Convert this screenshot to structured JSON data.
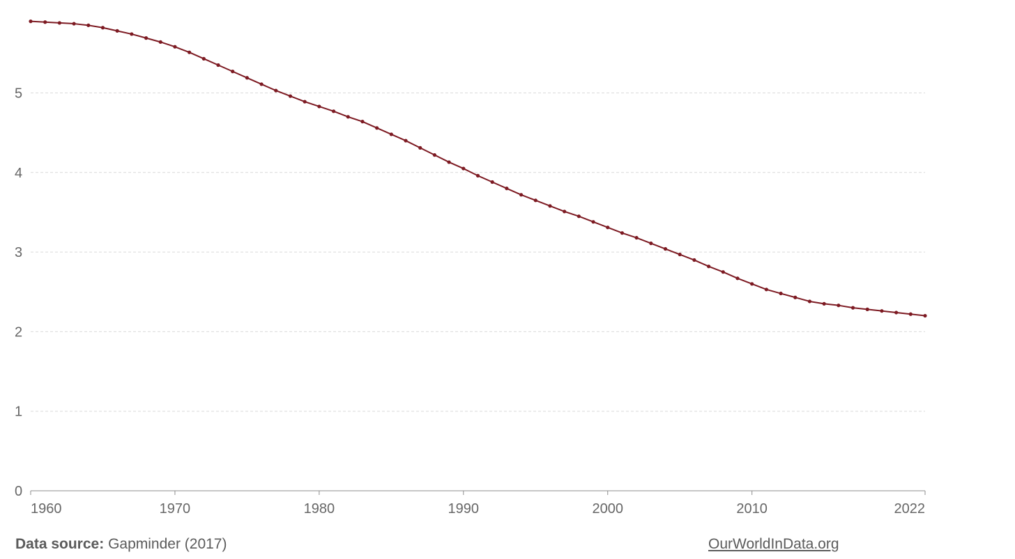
{
  "chart_data": {
    "type": "line",
    "title": "",
    "xlabel": "",
    "ylabel": "",
    "xlim": [
      1960,
      2022
    ],
    "ylim": [
      0,
      6
    ],
    "xticks": [
      1960,
      1970,
      1980,
      1990,
      2000,
      2010,
      2022
    ],
    "yticks": [
      0,
      1,
      2,
      3,
      4,
      5
    ],
    "grid": "horizontal dashed",
    "series": [
      {
        "color": "#7d1a22",
        "x": [
          1960,
          1961,
          1962,
          1963,
          1964,
          1965,
          1966,
          1967,
          1968,
          1969,
          1970,
          1971,
          1972,
          1973,
          1974,
          1975,
          1976,
          1977,
          1978,
          1979,
          1980,
          1981,
          1982,
          1983,
          1984,
          1985,
          1986,
          1987,
          1988,
          1989,
          1990,
          1991,
          1992,
          1993,
          1994,
          1995,
          1996,
          1997,
          1998,
          1999,
          2000,
          2001,
          2002,
          2003,
          2004,
          2005,
          2006,
          2007,
          2008,
          2009,
          2010,
          2011,
          2012,
          2013,
          2014,
          2015,
          2016,
          2017,
          2018,
          2019,
          2020,
          2021,
          2022
        ],
        "y": [
          5.9,
          5.89,
          5.88,
          5.87,
          5.85,
          5.82,
          5.78,
          5.74,
          5.69,
          5.64,
          5.58,
          5.51,
          5.43,
          5.35,
          5.27,
          5.19,
          5.11,
          5.03,
          4.96,
          4.89,
          4.83,
          4.77,
          4.7,
          4.64,
          4.56,
          4.48,
          4.4,
          4.31,
          4.22,
          4.13,
          4.05,
          3.96,
          3.88,
          3.8,
          3.72,
          3.65,
          3.58,
          3.51,
          3.45,
          3.38,
          3.31,
          3.24,
          3.18,
          3.11,
          3.04,
          2.97,
          2.9,
          2.82,
          2.75,
          2.67,
          2.6,
          2.53,
          2.48,
          2.43,
          2.38,
          2.35,
          2.33,
          2.3,
          2.28,
          2.26,
          2.24,
          2.22,
          2.2
        ]
      }
    ]
  },
  "footer": {
    "source_label": "Data source:",
    "source_text": "Gapminder (2017)",
    "link_text": "OurWorldInData.org"
  }
}
